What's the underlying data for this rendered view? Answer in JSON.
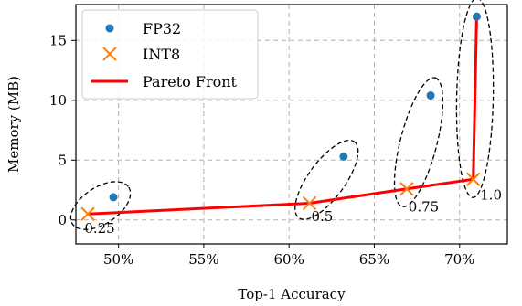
{
  "chart_data": {
    "type": "scatter",
    "title": "",
    "xlabel": "Top-1 Accuracy",
    "ylabel": "Memory (MB)",
    "xlim": [
      47.5,
      72.8
    ],
    "ylim": [
      -2.0,
      18.0
    ],
    "x_ticks": [
      50,
      55,
      60,
      65,
      70
    ],
    "x_tick_labels": [
      "50%",
      "55%",
      "60%",
      "65%",
      "70%"
    ],
    "y_ticks": [
      0,
      5,
      10,
      15
    ],
    "y_tick_labels": [
      "0",
      "5",
      "10",
      "15"
    ],
    "grid": true,
    "legend_position": "top-left",
    "series": [
      {
        "name": "FP32",
        "marker": "circle",
        "color": "#1f77b4",
        "points": [
          {
            "x": 49.7,
            "y": 1.9
          },
          {
            "x": 63.2,
            "y": 5.3
          },
          {
            "x": 68.3,
            "y": 10.4
          },
          {
            "x": 71.0,
            "y": 17.0
          }
        ]
      },
      {
        "name": "INT8",
        "marker": "x",
        "color": "#ff7f0e",
        "points": [
          {
            "x": 48.2,
            "y": 0.5
          },
          {
            "x": 61.2,
            "y": 1.4
          },
          {
            "x": 66.9,
            "y": 2.6
          },
          {
            "x": 70.8,
            "y": 3.4
          }
        ]
      },
      {
        "name": "Pareto Front",
        "marker": "line",
        "color": "#ff0000",
        "points": [
          {
            "x": 48.2,
            "y": 0.5
          },
          {
            "x": 61.2,
            "y": 1.4
          },
          {
            "x": 66.9,
            "y": 2.6
          },
          {
            "x": 70.8,
            "y": 3.4
          },
          {
            "x": 71.0,
            "y": 17.0
          }
        ]
      }
    ],
    "groups": [
      {
        "label": "0.25",
        "center": {
          "x": 48.95,
          "y": 1.2
        },
        "label_at": {
          "x": 48.0,
          "y": -1.1
        }
      },
      {
        "label": "0.5",
        "center": {
          "x": 62.2,
          "y": 3.35
        },
        "label_at": {
          "x": 61.3,
          "y": -0.1
        }
      },
      {
        "label": "0.75",
        "center": {
          "x": 67.6,
          "y": 6.5
        },
        "label_at": {
          "x": 67.0,
          "y": 0.7
        }
      },
      {
        "label": "1.0",
        "center": {
          "x": 70.9,
          "y": 10.2
        },
        "label_at": {
          "x": 71.2,
          "y": 1.7
        }
      }
    ]
  }
}
